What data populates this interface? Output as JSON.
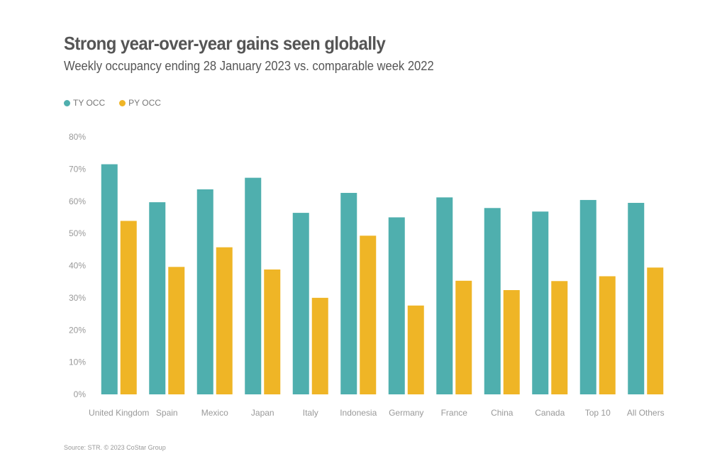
{
  "title": "Strong year-over-year gains seen globally",
  "subtitle": "Weekly occupancy ending 28 January 2023 vs. comparable week 2022",
  "source": "Source: STR. © 2023 CoStar Group",
  "colors": {
    "ty": "#4fafae",
    "py": "#efb526",
    "axis_text": "#999999"
  },
  "chart_data": {
    "type": "bar",
    "title": "Strong year-over-year gains seen globally",
    "subtitle": "Weekly occupancy ending 28 January 2023 vs. comparable week 2022",
    "categories": [
      "United Kingdom",
      "Spain",
      "Mexico",
      "Japan",
      "Italy",
      "Indonesia",
      "Germany",
      "France",
      "China",
      "Canada",
      "Top 10",
      "All Others"
    ],
    "series": [
      {
        "name": "TY OCC",
        "values": [
          71.5,
          59.7,
          63.7,
          67.3,
          56.4,
          62.6,
          55.0,
          61.2,
          57.9,
          56.8,
          60.4,
          59.5
        ]
      },
      {
        "name": "PY OCC",
        "values": [
          53.9,
          39.6,
          45.7,
          38.8,
          30.0,
          49.3,
          27.6,
          35.3,
          32.4,
          35.2,
          36.7,
          39.4
        ]
      }
    ],
    "yticks": [
      "0%",
      "10%",
      "20%",
      "30%",
      "40%",
      "50%",
      "60%",
      "70%",
      "80%"
    ],
    "ylim": [
      0,
      80
    ],
    "grid": false,
    "legend_position": "top-left"
  }
}
